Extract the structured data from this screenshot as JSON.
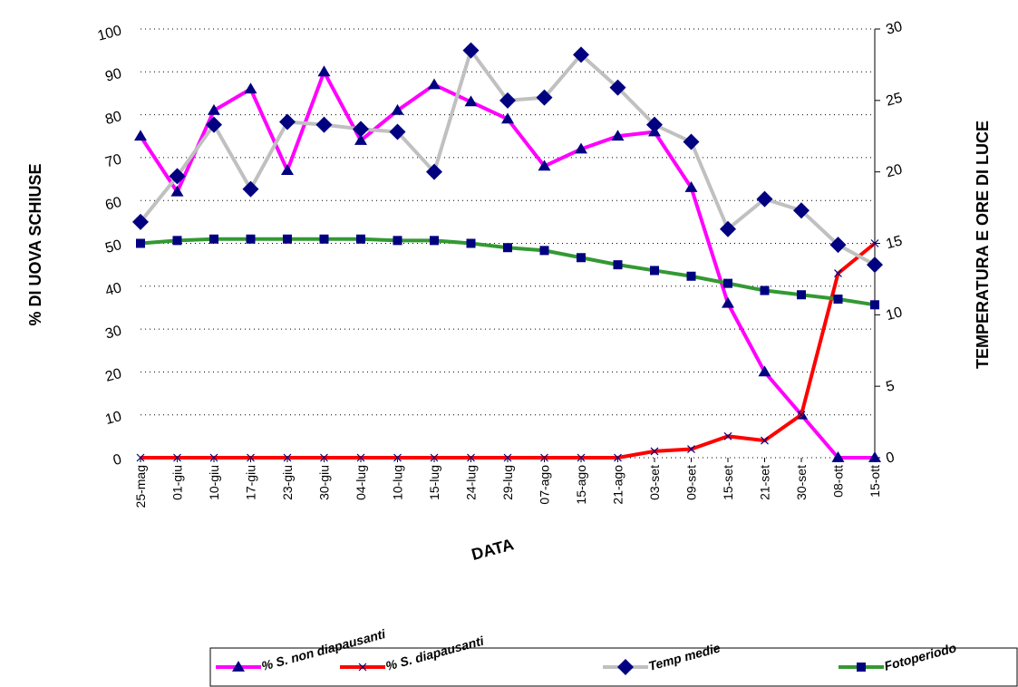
{
  "chart_data": {
    "type": "line",
    "x_label": "DATA",
    "y_label": "% DI UOVA SCHIUSE",
    "y2_label": "TEMPERATURA E ORE DI LUCE",
    "categories": [
      "25-mag",
      "01-giu",
      "10-giu",
      "17-giu",
      "23-giu",
      "30-giu",
      "04-lug",
      "10-lug",
      "15-lug",
      "24-lug",
      "29-lug",
      "07-ago",
      "15-ago",
      "21-ago",
      "03-set",
      "09-set",
      "15-set",
      "21-set",
      "30-set",
      "08-ott",
      "15-ott"
    ],
    "ylim": [
      0,
      100
    ],
    "yticks": [
      0,
      10,
      20,
      30,
      40,
      50,
      60,
      70,
      80,
      90,
      100
    ],
    "y2lim": [
      0,
      30
    ],
    "y2ticks": [
      0,
      5,
      10,
      15,
      20,
      25,
      30
    ],
    "grid": true,
    "legend": "bottom",
    "series": [
      {
        "name": "% S. non diapausanti",
        "color": "#ff00ff",
        "marker": "triangle",
        "marker_color": "#000080",
        "values": [
          75,
          62,
          81,
          86,
          67,
          90,
          74,
          81,
          87,
          83,
          79,
          68,
          72,
          75,
          76,
          63,
          36,
          20,
          10,
          0,
          0
        ]
      },
      {
        "name": "% S. diapausanti",
        "color": "#ff0000",
        "marker": "x",
        "marker_color": "#000080",
        "values": [
          0,
          0,
          0,
          0,
          0,
          0,
          0,
          0,
          0,
          0,
          0,
          0,
          0,
          0,
          1.5,
          2,
          5,
          4,
          10,
          43,
          50
        ]
      },
      {
        "name": "Temp medie",
        "color": "#c0c0c0",
        "marker": "diamond",
        "marker_color": "#000080",
        "axis": "y2",
        "values": [
          16.5,
          19.7,
          23.3,
          18.8,
          23.5,
          23.3,
          23,
          22.8,
          20,
          28.5,
          25,
          25.2,
          28.2,
          25.9,
          23.3,
          22.1,
          16,
          18.1,
          17.3,
          14.9,
          13.5
        ]
      },
      {
        "name": "Fotoperiodo",
        "color": "#339933",
        "marker": "square",
        "marker_color": "#000080",
        "axis": "y2",
        "values": [
          15,
          15.2,
          15.3,
          15.3,
          15.3,
          15.3,
          15.3,
          15.2,
          15.2,
          15,
          14.7,
          14.5,
          14,
          13.5,
          13.1,
          12.7,
          12.2,
          11.7,
          11.4,
          11.1,
          10.7
        ]
      }
    ]
  }
}
